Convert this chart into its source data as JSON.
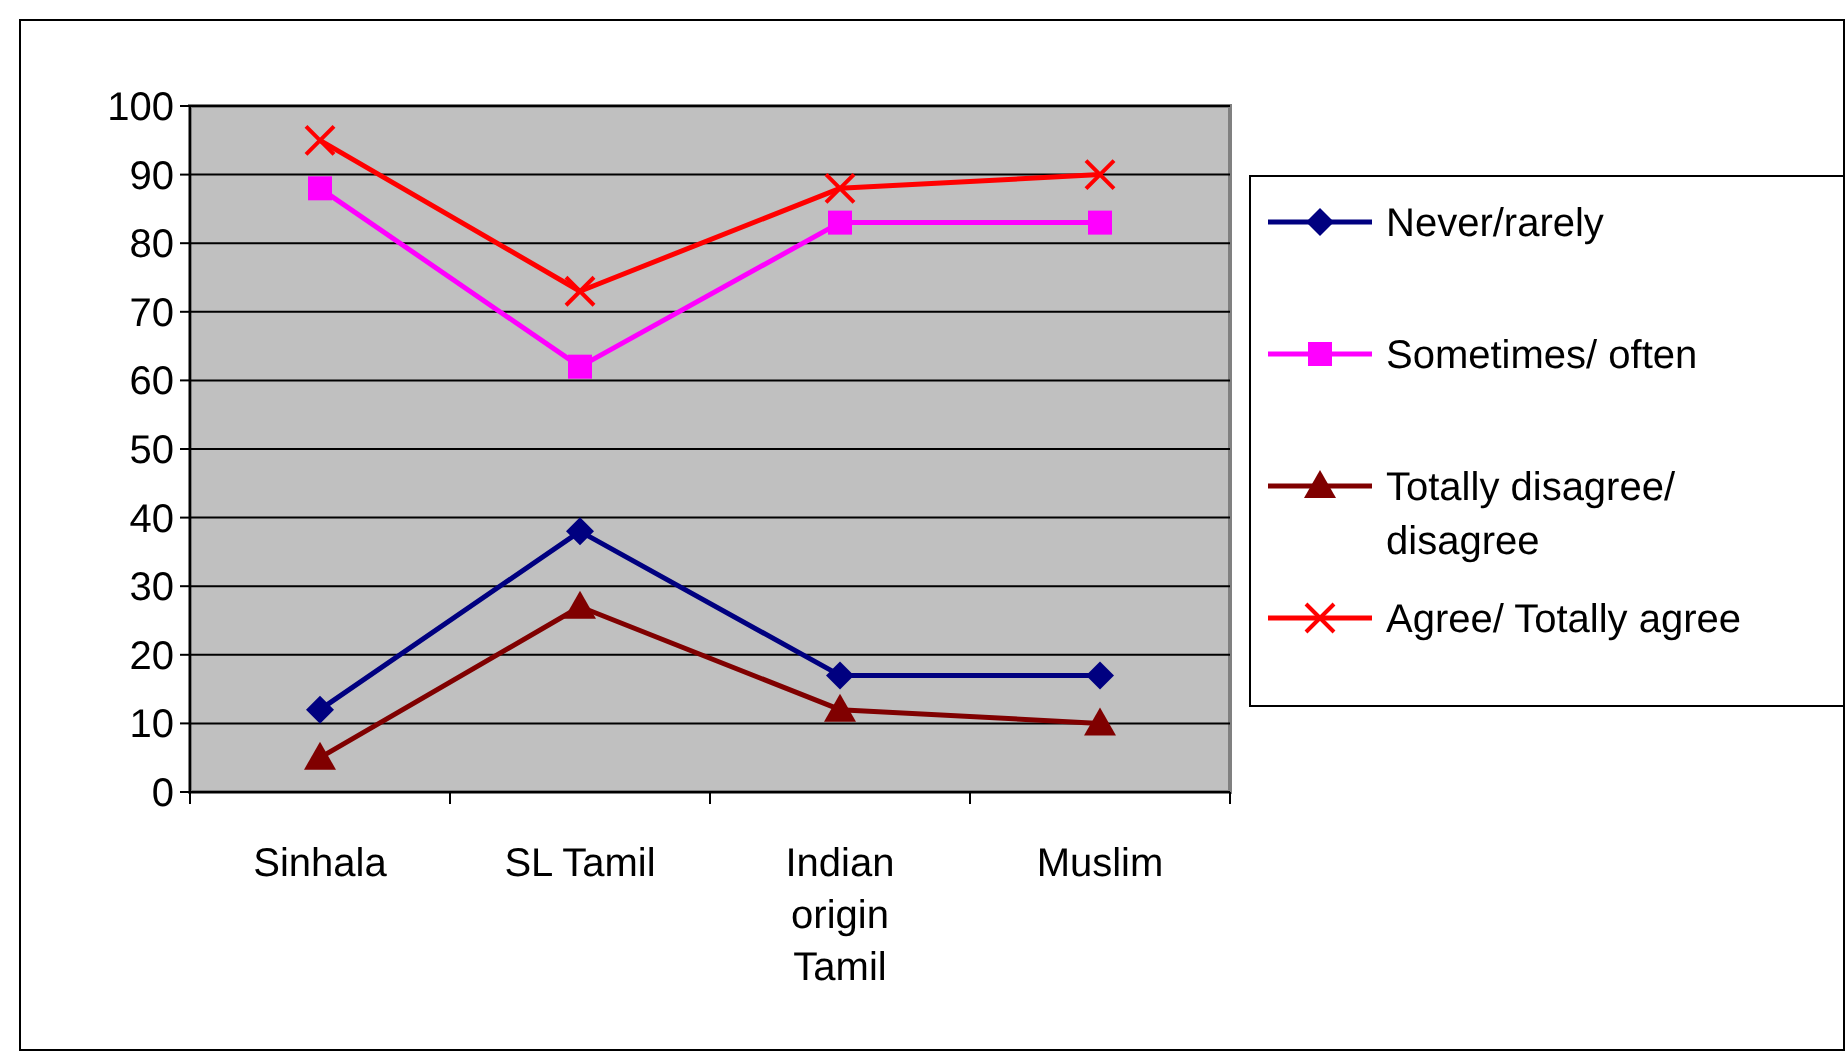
{
  "chart_data": {
    "type": "line",
    "categories": [
      "Sinhala",
      "SL Tamil",
      "Indian origin Tamil",
      "Muslim"
    ],
    "series": [
      {
        "name": "Never/rarely",
        "color": "#000080",
        "marker": "diamond",
        "values": [
          12,
          38,
          17,
          17
        ]
      },
      {
        "name": "Sometimes/ often",
        "color": "#ff00ff",
        "marker": "square",
        "values": [
          88,
          62,
          83,
          83
        ]
      },
      {
        "name": "Totally disagree/ disagree",
        "color": "#800000",
        "marker": "triangle",
        "values": [
          5,
          27,
          12,
          10
        ]
      },
      {
        "name": "Agree/ Totally agree",
        "color": "#ff0000",
        "marker": "cross",
        "values": [
          95,
          73,
          88,
          90
        ]
      }
    ],
    "ylim": [
      0,
      100
    ],
    "yticks": [
      0,
      10,
      20,
      30,
      40,
      50,
      60,
      70,
      80,
      90,
      100
    ],
    "grid": "y",
    "legend": "right"
  }
}
